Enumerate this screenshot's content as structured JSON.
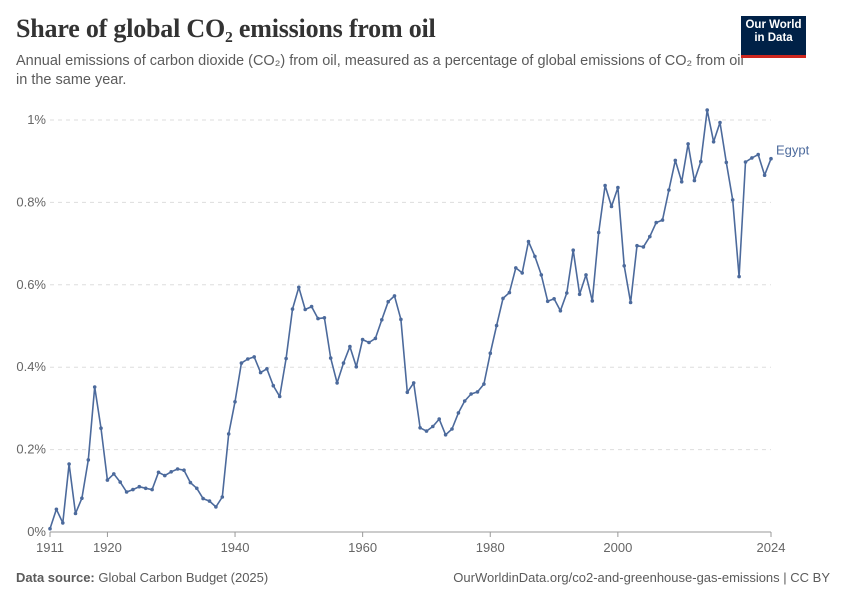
{
  "header": {
    "title": "Share of global CO₂ emissions from oil",
    "subtitle": "Annual emissions of carbon dioxide (CO₂) from oil, measured as a percentage of global emissions of CO₂ from oil in the same year."
  },
  "logo": {
    "line1": "Our World",
    "line2": "in Data"
  },
  "footer": {
    "source_label": "Data source:",
    "source_text": "Global Carbon Budget (2025)",
    "url": "OurWorldinData.org/co2-and-greenhouse-gas-emissions | CC BY"
  },
  "colors": {
    "series": "#4c6a9c",
    "grid": "#dddddd",
    "logo_bg": "#002147",
    "logo_accent": "#ce261e"
  },
  "chart_data": {
    "type": "line",
    "title": "Share of global CO₂ emissions from oil",
    "xlabel": "",
    "ylabel": "",
    "xlim": [
      1911,
      2024
    ],
    "ylim": [
      0,
      1.0
    ],
    "x_ticks": [
      1911,
      1920,
      1940,
      1960,
      1980,
      2000,
      2024
    ],
    "y_ticks": [
      0,
      0.2,
      0.4,
      0.6,
      0.8,
      1.0
    ],
    "y_tick_labels": [
      "0%",
      "0.2%",
      "0.4%",
      "0.6%",
      "0.8%",
      "1%"
    ],
    "grid": "horizontal dashed",
    "series": [
      {
        "name": "Egypt",
        "x": [
          1911,
          1912,
          1913,
          1914,
          1915,
          1916,
          1917,
          1918,
          1919,
          1920,
          1921,
          1922,
          1923,
          1924,
          1925,
          1926,
          1927,
          1928,
          1929,
          1930,
          1931,
          1932,
          1933,
          1934,
          1935,
          1936,
          1937,
          1938,
          1939,
          1940,
          1941,
          1942,
          1943,
          1944,
          1945,
          1946,
          1947,
          1948,
          1949,
          1950,
          1951,
          1952,
          1953,
          1954,
          1955,
          1956,
          1957,
          1958,
          1959,
          1960,
          1961,
          1962,
          1963,
          1964,
          1965,
          1966,
          1967,
          1968,
          1969,
          1970,
          1971,
          1972,
          1973,
          1974,
          1975,
          1976,
          1977,
          1978,
          1979,
          1980,
          1981,
          1982,
          1983,
          1984,
          1985,
          1986,
          1987,
          1988,
          1989,
          1990,
          1991,
          1992,
          1993,
          1994,
          1995,
          1996,
          1997,
          1998,
          1999,
          2000,
          2001,
          2002,
          2003,
          2004,
          2005,
          2006,
          2007,
          2008,
          2009,
          2010,
          2011,
          2012,
          2013,
          2014,
          2015,
          2016,
          2017,
          2018,
          2019,
          2020,
          2021,
          2022,
          2023,
          2024
        ],
        "values": [
          0.008,
          0.055,
          0.022,
          0.165,
          0.045,
          0.082,
          0.175,
          0.352,
          0.252,
          0.126,
          0.141,
          0.121,
          0.097,
          0.103,
          0.11,
          0.106,
          0.103,
          0.145,
          0.137,
          0.146,
          0.153,
          0.15,
          0.12,
          0.106,
          0.081,
          0.075,
          0.061,
          0.085,
          0.238,
          0.316,
          0.41,
          0.42,
          0.425,
          0.387,
          0.396,
          0.355,
          0.329,
          0.421,
          0.541,
          0.594,
          0.54,
          0.547,
          0.518,
          0.52,
          0.422,
          0.362,
          0.41,
          0.45,
          0.401,
          0.467,
          0.46,
          0.47,
          0.515,
          0.559,
          0.573,
          0.516,
          0.339,
          0.362,
          0.253,
          0.245,
          0.256,
          0.274,
          0.236,
          0.25,
          0.289,
          0.318,
          0.335,
          0.34,
          0.359,
          0.434,
          0.501,
          0.567,
          0.581,
          0.641,
          0.629,
          0.705,
          0.669,
          0.624,
          0.56,
          0.566,
          0.537,
          0.58,
          0.684,
          0.577,
          0.624,
          0.561,
          0.727,
          0.841,
          0.79,
          0.836,
          0.646,
          0.557,
          0.695,
          0.692,
          0.717,
          0.751,
          0.757,
          0.83,
          0.902,
          0.85,
          0.942,
          0.853,
          0.899,
          1.024,
          0.947,
          0.994,
          0.897,
          0.806,
          0.62,
          0.898,
          0.908,
          0.916,
          0.866,
          0.906
        ]
      }
    ]
  }
}
